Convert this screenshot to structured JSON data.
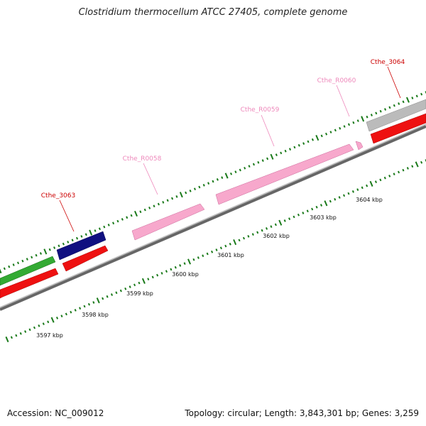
{
  "header": {
    "title": "Clostridium thermocellum ATCC 27405, complete genome"
  },
  "footer": {
    "accession": "Accession: NC_009012",
    "stats": "Topology: circular; Length: 3,843,301 bp; Genes: 3,259"
  },
  "axis": {
    "tick_labels": [
      {
        "text": "3597 kbp",
        "kbp": 3597
      },
      {
        "text": "3598 kbp",
        "kbp": 3598
      },
      {
        "text": "3599 kbp",
        "kbp": 3599
      },
      {
        "text": "3600 kbp",
        "kbp": 3600
      },
      {
        "text": "3601 kbp",
        "kbp": 3601
      },
      {
        "text": "3602 kbp",
        "kbp": 3602
      },
      {
        "text": "3603 kbp",
        "kbp": 3603
      },
      {
        "text": "3604 kbp",
        "kbp": 3604
      }
    ]
  },
  "genes": [
    {
      "label": "Cthe_3063",
      "color": "#cc0000"
    },
    {
      "label": "Cthe_R0058",
      "color": "#ee88bb"
    },
    {
      "label": "Cthe_R0059",
      "color": "#ee88bb"
    },
    {
      "label": "Cthe_R0060",
      "color": "#ee88bb"
    },
    {
      "label": "Cthe_3064",
      "color": "#cc0000"
    }
  ],
  "colors": {
    "backbone": "#777777",
    "ticks": "#1a7a1a",
    "cds_red": "#ee1111",
    "rna_pink": "#f7a8cc",
    "cds_navy": "#101080",
    "cds_green": "#33aa33",
    "cds_grey": "#bbbbbb"
  }
}
